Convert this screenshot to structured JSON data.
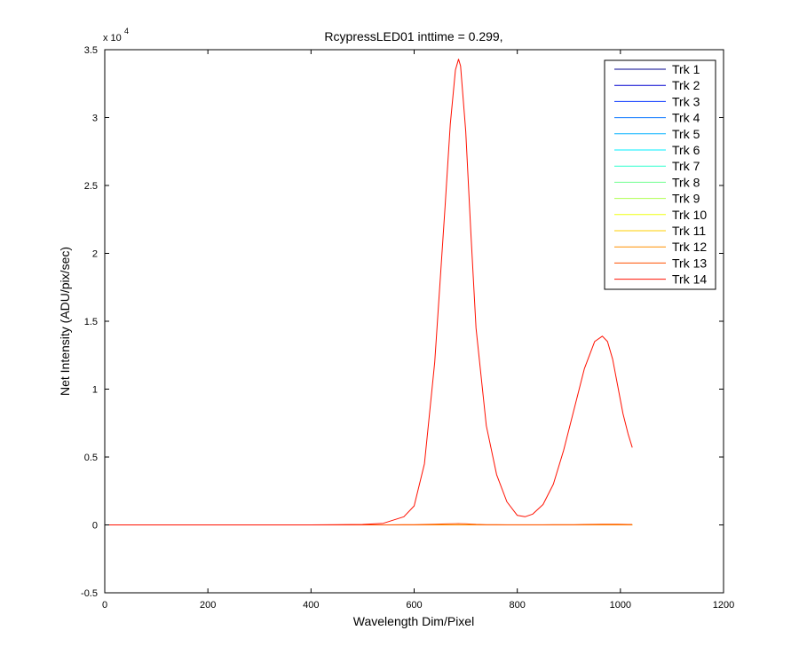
{
  "chart_data": {
    "type": "line",
    "title": "RcypressLED01 inttime = 0.299,",
    "xlabel": "Wavelength Dim/Pixel",
    "ylabel": "Net Intensity (ADU/pix/sec)",
    "xlim": [
      0,
      1200
    ],
    "ylim": [
      -5000,
      35000
    ],
    "xticks": [
      0,
      200,
      400,
      600,
      800,
      1000,
      1200
    ],
    "yticks": [
      -5000,
      0,
      5000,
      10000,
      15000,
      20000,
      25000,
      30000,
      35000
    ],
    "ytick_labels": [
      "-0.5",
      "0",
      "0.5",
      "1",
      "1.5",
      "2",
      "2.5",
      "3",
      "3.5"
    ],
    "y_exponent_label": "x 10",
    "y_exponent_power": "4",
    "legend_position": "top-right",
    "grid": false,
    "x": [
      0,
      100,
      200,
      300,
      400,
      500,
      540,
      580,
      600,
      620,
      640,
      660,
      670,
      680,
      686,
      690,
      700,
      710,
      720,
      740,
      760,
      780,
      800,
      815,
      830,
      850,
      870,
      890,
      910,
      930,
      950,
      965,
      975,
      985,
      995,
      1005,
      1015,
      1023
    ],
    "series": [
      {
        "name": "Trk 1",
        "color": "#00008f",
        "values": [
          0,
          0,
          0,
          0,
          0,
          0,
          0,
          0,
          0,
          0,
          0,
          0,
          0,
          0,
          0,
          0,
          0,
          0,
          0,
          0,
          0,
          0,
          0,
          0,
          0,
          0,
          0,
          0,
          0,
          0,
          0,
          0,
          0,
          0,
          0,
          0,
          0,
          0
        ]
      },
      {
        "name": "Trk 2",
        "color": "#0000cf",
        "values": [
          0,
          0,
          0,
          0,
          0,
          0,
          0,
          0,
          0,
          0,
          0,
          0,
          0,
          0,
          0,
          0,
          0,
          0,
          0,
          0,
          0,
          0,
          0,
          0,
          0,
          0,
          0,
          0,
          0,
          0,
          0,
          0,
          0,
          0,
          0,
          0,
          0,
          0
        ]
      },
      {
        "name": "Trk 3",
        "color": "#0030ff",
        "values": [
          0,
          0,
          0,
          0,
          0,
          0,
          0,
          0,
          0,
          0,
          0,
          0,
          0,
          0,
          0,
          0,
          0,
          0,
          0,
          0,
          0,
          0,
          0,
          0,
          0,
          0,
          0,
          0,
          0,
          0,
          0,
          0,
          0,
          0,
          0,
          0,
          0,
          0
        ]
      },
      {
        "name": "Trk 4",
        "color": "#0070ff",
        "values": [
          0,
          0,
          0,
          0,
          0,
          0,
          0,
          0,
          0,
          0,
          0,
          0,
          0,
          0,
          0,
          0,
          0,
          0,
          0,
          0,
          0,
          0,
          0,
          0,
          0,
          0,
          0,
          0,
          0,
          0,
          0,
          0,
          0,
          0,
          0,
          0,
          0,
          0
        ]
      },
      {
        "name": "Trk 5",
        "color": "#00b0ff",
        "values": [
          0,
          0,
          0,
          0,
          0,
          0,
          0,
          0,
          0,
          0,
          0,
          0,
          0,
          0,
          0,
          0,
          0,
          0,
          0,
          0,
          0,
          0,
          0,
          0,
          0,
          0,
          0,
          0,
          0,
          0,
          0,
          0,
          0,
          0,
          0,
          0,
          0,
          0
        ]
      },
      {
        "name": "Trk 6",
        "color": "#00efff",
        "values": [
          0,
          0,
          0,
          0,
          0,
          0,
          0,
          0,
          0,
          0,
          0,
          0,
          0,
          0,
          0,
          0,
          0,
          0,
          0,
          0,
          0,
          0,
          0,
          0,
          0,
          0,
          0,
          0,
          0,
          0,
          0,
          0,
          0,
          0,
          0,
          0,
          0,
          0
        ]
      },
      {
        "name": "Trk 7",
        "color": "#30ffcf",
        "values": [
          0,
          0,
          0,
          0,
          0,
          0,
          0,
          0,
          0,
          0,
          0,
          0,
          0,
          0,
          0,
          0,
          0,
          0,
          0,
          0,
          0,
          0,
          0,
          0,
          0,
          0,
          0,
          0,
          0,
          0,
          0,
          0,
          0,
          0,
          0,
          0,
          0,
          0
        ]
      },
      {
        "name": "Trk 8",
        "color": "#70ff8f",
        "values": [
          0,
          0,
          0,
          0,
          0,
          0,
          0,
          0,
          0,
          0,
          0,
          0,
          0,
          0,
          0,
          0,
          0,
          0,
          0,
          0,
          0,
          0,
          0,
          0,
          0,
          0,
          0,
          0,
          0,
          0,
          0,
          0,
          0,
          0,
          0,
          0,
          0,
          0
        ]
      },
      {
        "name": "Trk 9",
        "color": "#afff50",
        "values": [
          0,
          0,
          0,
          0,
          0,
          0,
          0,
          0,
          0,
          0,
          0,
          0,
          0,
          0,
          0,
          0,
          0,
          0,
          0,
          0,
          0,
          0,
          0,
          0,
          0,
          0,
          0,
          0,
          0,
          0,
          0,
          0,
          0,
          0,
          0,
          0,
          0,
          0
        ]
      },
      {
        "name": "Trk 10",
        "color": "#efff10",
        "values": [
          0,
          0,
          0,
          0,
          0,
          0,
          0,
          0,
          0,
          0,
          0,
          0,
          0,
          0,
          0,
          0,
          0,
          0,
          0,
          0,
          0,
          0,
          0,
          0,
          0,
          0,
          0,
          0,
          0,
          0,
          0,
          0,
          0,
          0,
          0,
          0,
          0,
          0
        ]
      },
      {
        "name": "Trk 11",
        "color": "#ffcf00",
        "values": [
          0,
          0,
          0,
          0,
          0,
          0,
          0,
          0,
          0,
          0,
          0,
          0,
          0,
          0,
          0,
          0,
          0,
          0,
          0,
          0,
          0,
          0,
          0,
          0,
          0,
          0,
          0,
          0,
          0,
          0,
          0,
          0,
          0,
          0,
          0,
          0,
          0,
          0
        ]
      },
      {
        "name": "Trk 12",
        "color": "#ff8f00",
        "values": [
          0,
          0,
          0,
          0,
          0,
          0,
          0,
          0,
          0,
          0,
          0,
          0,
          0,
          0,
          0,
          0,
          0,
          0,
          0,
          0,
          0,
          0,
          0,
          0,
          0,
          0,
          0,
          0,
          0,
          0,
          0,
          0,
          0,
          0,
          0,
          0,
          0,
          0
        ]
      },
      {
        "name": "Trk 13",
        "color": "#ff5000",
        "values": [
          0,
          0,
          0,
          0,
          0,
          0,
          0,
          10,
          15,
          30,
          50,
          70,
          80,
          90,
          95,
          90,
          80,
          60,
          40,
          20,
          10,
          5,
          5,
          5,
          5,
          5,
          10,
          15,
          20,
          30,
          40,
          50,
          50,
          50,
          45,
          40,
          35,
          30
        ]
      },
      {
        "name": "Trk 14",
        "color": "#ff1000",
        "values": [
          0,
          0,
          0,
          0,
          0,
          30,
          120,
          600,
          1400,
          4500,
          12000,
          23500,
          29500,
          33500,
          34300,
          33800,
          29000,
          21500,
          14500,
          7300,
          3700,
          1700,
          700,
          600,
          800,
          1500,
          3000,
          5500,
          8500,
          11500,
          13500,
          13900,
          13500,
          12200,
          10200,
          8200,
          6700,
          5700
        ]
      }
    ]
  }
}
